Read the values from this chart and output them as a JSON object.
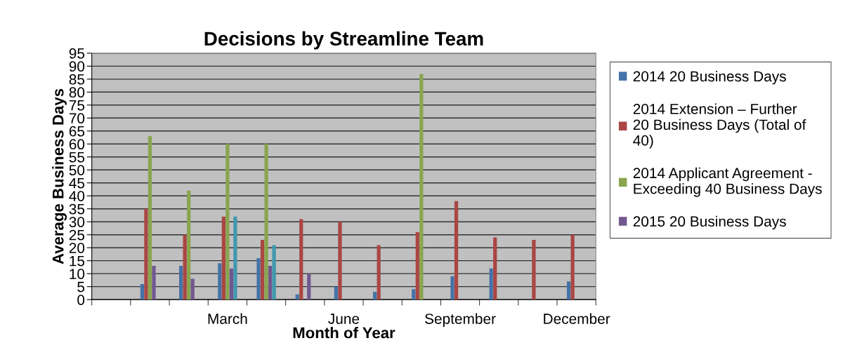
{
  "chart_data": {
    "type": "bar",
    "title": "Decisions by Streamline Team",
    "xlabel": "Month of Year",
    "ylabel": "Average Business Days",
    "categories": [
      null,
      null,
      null,
      "March",
      null,
      null,
      "June",
      null,
      null,
      "September",
      null,
      null,
      "December"
    ],
    "series": [
      {
        "name": "2014 20 Business Days",
        "color": "#4572a7",
        "values": [
          null,
          6,
          13,
          14,
          16,
          2,
          5,
          3,
          4,
          9,
          12,
          null,
          7
        ]
      },
      {
        "name": "2014 Extension – Further 20 Business Days (Total of 40)",
        "color": "#aa4643",
        "values": [
          null,
          35,
          25,
          32,
          23,
          31,
          30,
          21,
          26,
          38,
          24,
          23,
          25
        ]
      },
      {
        "name": "2014 Applicant Agreement - Exceeding 40 Business Days",
        "color": "#89a54e",
        "values": [
          null,
          63,
          42,
          60,
          60,
          null,
          null,
          null,
          87,
          null,
          null,
          null,
          null
        ]
      },
      {
        "name": "2015 20 Business Days",
        "color": "#71588f",
        "values": [
          null,
          13,
          8,
          12,
          13,
          10,
          null,
          null,
          null,
          null,
          null,
          null,
          null
        ]
      },
      {
        "color": "#4198af",
        "values": [
          null,
          null,
          null,
          32,
          21,
          null,
          null,
          null,
          null,
          null,
          null,
          null,
          null
        ]
      }
    ],
    "ylim": [
      0,
      95
    ],
    "yticks": [
      0,
      5,
      10,
      15,
      20,
      25,
      30,
      35,
      40,
      45,
      50,
      55,
      60,
      65,
      70,
      75,
      80,
      85,
      90,
      95
    ],
    "grid": "y",
    "legend": "right"
  }
}
